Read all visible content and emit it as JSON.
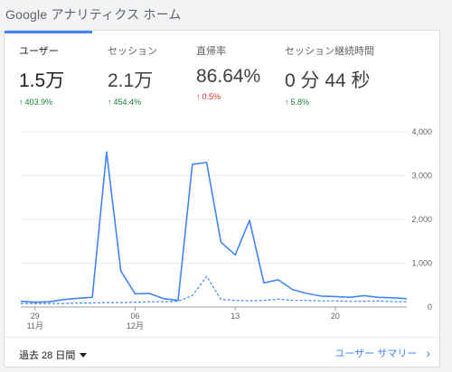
{
  "header": {
    "title": "Google アナリティクス ホーム"
  },
  "metrics": [
    {
      "label": "ユーザー",
      "value": "1.5万",
      "change": "403.9%",
      "direction": "up"
    },
    {
      "label": "セッション",
      "value": "2.1万",
      "change": "454.4%",
      "direction": "up"
    },
    {
      "label": "直帰率",
      "value": "86.64%",
      "change": "0.5%",
      "direction": "down"
    },
    {
      "label": "セッション継続時間",
      "value": "0 分 44 秒",
      "change": "5.8%",
      "direction": "up"
    }
  ],
  "colors": {
    "accent": "#4285f4",
    "up": "#188038",
    "down": "#d93025"
  },
  "chart_data": {
    "type": "line",
    "y_ticks": [
      "4,000",
      "3,000",
      "2,000",
      "1,000",
      "0"
    ],
    "ylim": [
      0,
      4000
    ],
    "x_ticks": [
      {
        "day": 29,
        "label": "29",
        "sublabel": "11月"
      },
      {
        "day": 36,
        "label": "06",
        "sublabel": "12月"
      },
      {
        "day": 43,
        "label": "13",
        "sublabel": ""
      },
      {
        "day": 50,
        "label": "20",
        "sublabel": ""
      }
    ],
    "x": [
      28,
      29,
      30,
      31,
      32,
      33,
      34,
      35,
      36,
      37,
      38,
      39,
      40,
      41,
      42,
      43,
      44,
      45,
      46,
      47,
      48,
      49,
      50,
      51,
      52,
      53,
      54,
      55
    ],
    "series": [
      {
        "style": "solid",
        "values": [
          130,
          110,
          120,
          170,
          200,
          220,
          3540,
          820,
          300,
          310,
          190,
          150,
          3260,
          3300,
          1480,
          1190,
          1980,
          550,
          620,
          400,
          310,
          250,
          240,
          220,
          260,
          220,
          210,
          190
        ]
      },
      {
        "style": "dashed",
        "values": [
          80,
          80,
          80,
          80,
          90,
          90,
          100,
          100,
          110,
          120,
          120,
          130,
          260,
          700,
          170,
          150,
          140,
          150,
          180,
          150,
          150,
          140,
          140,
          130,
          130,
          140,
          120,
          120
        ]
      }
    ]
  },
  "footer": {
    "date_range": "過去 28 日間",
    "summary_link": "ユーザー サマリー"
  }
}
